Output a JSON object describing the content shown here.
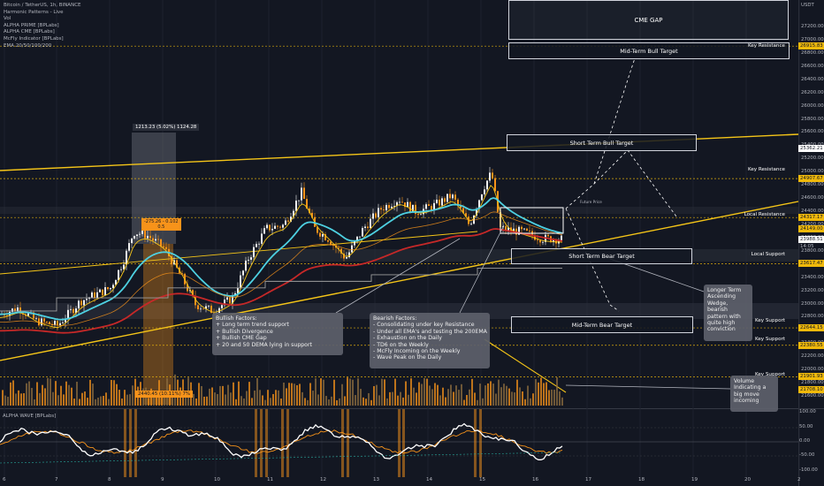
{
  "legend": {
    "title": "Bitcoin / TetherUS, 1h, BINANCE",
    "indicators": [
      "Harmonic Patterns - Live",
      "Vol",
      "ALPHA PRIME [BPLabs]",
      "ALPHA CME [BPLabs]",
      "McFly Indicator [BPLabs]",
      "EMA 20/50/100/200"
    ]
  },
  "price_axis": {
    "unit": "USDT",
    "ticks": [
      "27200.00",
      "27000.00",
      "26800.00",
      "26600.00",
      "26400.00",
      "26200.00",
      "26000.00",
      "25800.00",
      "25600.00",
      "25400.00",
      "25200.00",
      "25000.00",
      "24800.00",
      "24600.00",
      "24400.00",
      "24200.00",
      "24000.00",
      "23800.00",
      "23600.00",
      "23400.00",
      "23200.00",
      "23000.00",
      "22800.00",
      "22600.00",
      "22400.00",
      "22200.00",
      "22000.00",
      "21800.00",
      "21600.00"
    ],
    "price_labels": [
      {
        "text": "26915.83",
        "color": "#f0b90b"
      },
      {
        "text": "25362.21",
        "color": "#ffffff"
      },
      {
        "text": "24907.67",
        "color": "#f0b90b"
      },
      {
        "text": "24317.17",
        "color": "#f0b90b"
      },
      {
        "text": "24149.00",
        "color": "#f0b90b"
      },
      {
        "text": "23988.51",
        "color": "#ffffff"
      },
      {
        "text": "14:05",
        "color": "#b2b5be"
      },
      {
        "text": "23617.47",
        "color": "#f0b90b"
      },
      {
        "text": "22644.15",
        "color": "#f0b90b"
      },
      {
        "text": "22380.55",
        "color": "#f0b90b"
      },
      {
        "text": "21901.93",
        "color": "#f0b90b"
      },
      {
        "text": "21708.10",
        "color": "#f0b90b"
      }
    ]
  },
  "time_axis": [
    "6",
    "7",
    "8",
    "9",
    "10",
    "11",
    "12",
    "13",
    "14",
    "15",
    "16",
    "17",
    "18",
    "19",
    "20",
    "2"
  ],
  "osc_axis": [
    "100.00",
    "50.00",
    "0.00",
    "-50.00",
    "-100.00"
  ],
  "osc_title": "ALPHA WAVE [BPLabs]",
  "levels": {
    "key_resistance": "Key Resistance",
    "local_resistance": "Local Resistance",
    "local_support": "Local Support",
    "key_support": "Key Support"
  },
  "targets": {
    "cme_gap": "CME GAP",
    "mid_bull": "Mid-Term Bull Target",
    "short_bull": "Short Term Bull Target",
    "short_bear": "Short Term Bear Target",
    "mid_bear": "Mid-Term Bear Target"
  },
  "measure": {
    "top_label": "1213.23 (5.02%) 1124.28",
    "bottom_label": "2440.45 (10.11%) 7%",
    "fib_label_1": "-275.26 - 0.102",
    "fib_label_2": "0.5",
    "future_label": "Future Price"
  },
  "notes": {
    "bullish": [
      "Bullish Factors:",
      "+ Long term trend support",
      "+ Bullish Divergence",
      "+ Bullish CME Gap",
      "+ 20 and 50 DEMA lying in support"
    ],
    "bearish": [
      "Bearish Factors:",
      "- Consolidating under key Resistance",
      "- Under all EMA's and testing the 200EMA",
      "- Exhaustion on the Daily",
      "- TD6 on the Weekly",
      "- McFly Incoming on the Weekly",
      "- Wave Peak on the Daily"
    ],
    "wedge": [
      "Longer Term",
      "Ascending",
      "Wedge,",
      "bearish",
      "pattern with",
      "quite high",
      "conviction"
    ],
    "volume": [
      "Volume",
      "Indicating a",
      "big move",
      "incoming"
    ]
  },
  "colors": {
    "background": "#131722",
    "candle_up": "#f0f0f0",
    "candle_down": "#f7931a",
    "trendline": "#f5c518",
    "ema_cyan": "#4dd0e1",
    "ema_red": "#c62828",
    "ema_yellow": "#f5c518",
    "wave_main": "#ffffff",
    "wave_signal": "#f7931a"
  },
  "chart_data": {
    "type": "candlestick",
    "symbol": "Bitcoin / TetherUS",
    "interval": "1h",
    "exchange": "BINANCE",
    "ylim": [
      21500,
      27300
    ],
    "current_price": 23988.51,
    "series": [
      {
        "name": "price_close_approx",
        "x": [
          "6",
          "7",
          "8",
          "9",
          "10",
          "11",
          "12",
          "13",
          "14",
          "15",
          "16"
        ],
        "values": [
          22950,
          22650,
          23100,
          24050,
          23350,
          22750,
          23550,
          24250,
          24500,
          24700,
          24150
        ]
      }
    ],
    "key_levels": [
      26915.83,
      25362.21,
      24907.67,
      24317.17,
      24149.0,
      23617.47,
      22644.15,
      22380.55,
      21901.93,
      21708.1
    ]
  }
}
